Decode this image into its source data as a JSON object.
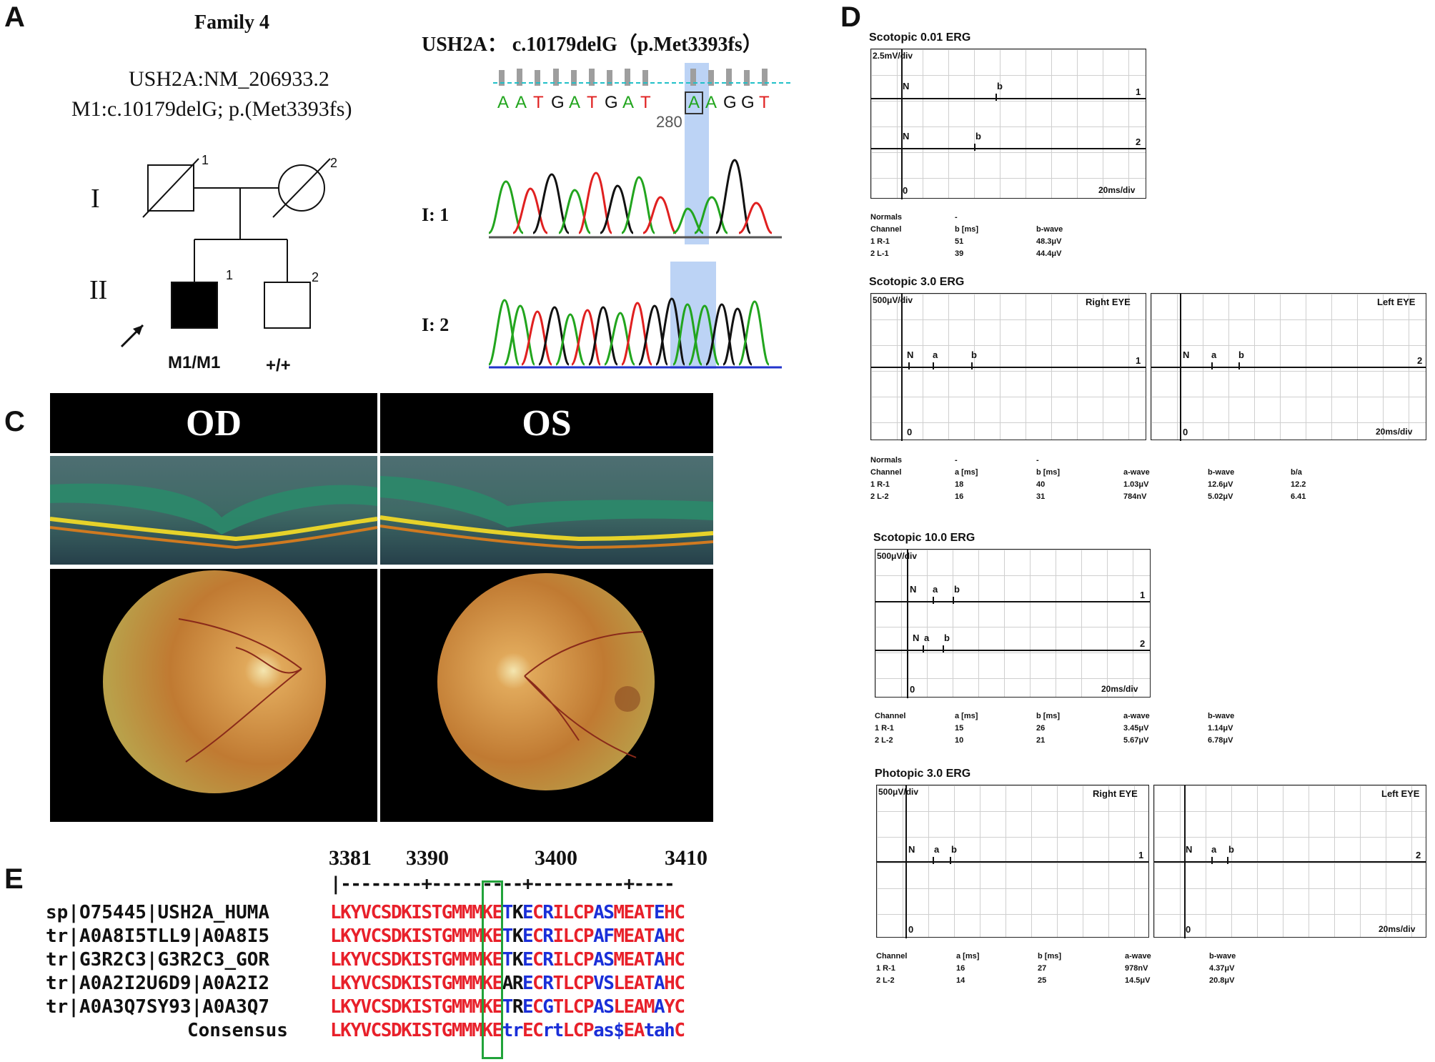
{
  "panels": {
    "a": "A",
    "c": "C",
    "d": "D",
    "e": "E"
  },
  "pedigree": {
    "family": "Family 4",
    "gene_ref": "USH2A:NM_206933.2",
    "mutation": "M1:c.10179delG; p.(Met3393fs)",
    "gen1": "I",
    "gen2": "II",
    "ids": [
      "1",
      "2",
      "1",
      "2"
    ],
    "genotypes": [
      "M1/M1",
      "+/+"
    ]
  },
  "chromatogram": {
    "title": "USH2A： c.10179delG（p.Met3393fs）",
    "bases": [
      "A",
      "A",
      "T",
      "G",
      "A",
      "T",
      "G",
      "A",
      "T",
      "A",
      "A",
      "G",
      "G",
      "T"
    ],
    "position": "280",
    "traces": [
      "I: 1",
      "I: 2"
    ]
  },
  "imaging": {
    "od": "OD",
    "os": "OS"
  },
  "erg": [
    {
      "title": "Scotopic 0.01 ERG",
      "scale": "2.5mV/div",
      "time": "20ms/div",
      "zero": "0",
      "channels": [
        "1",
        "2"
      ],
      "markers": [
        "N",
        "b",
        "N",
        "b"
      ],
      "table": {
        "header_top": [
          "Normals",
          "-"
        ],
        "header": [
          "Channel",
          "b [ms]",
          "b-wave"
        ],
        "rows": [
          [
            "1 R-1",
            "51",
            "48.3μV"
          ],
          [
            "2 L-1",
            "39",
            "44.4μV"
          ]
        ]
      }
    },
    {
      "title": "Scotopic 3.0 ERG",
      "scale": "500μV/div",
      "right": "Right EYE",
      "left": "Left EYE",
      "time": "20ms/div",
      "zero": "0",
      "channels": [
        "1",
        "2"
      ],
      "markers": [
        "N",
        "a",
        "b"
      ],
      "table": {
        "header_top": [
          "Normals",
          "-",
          "-"
        ],
        "header": [
          "Channel",
          "a [ms]",
          "b [ms]",
          "a-wave",
          "b-wave",
          "b/a"
        ],
        "rows": [
          [
            "1 R-1",
            "18",
            "40",
            "1.03μV",
            "12.6μV",
            "12.2"
          ],
          [
            "2 L-2",
            "16",
            "31",
            "784nV",
            "5.02μV",
            "6.41"
          ]
        ]
      }
    },
    {
      "title": "Scotopic 10.0 ERG",
      "scale": "500μV/div",
      "time": "20ms/div",
      "zero": "0",
      "channels": [
        "1",
        "2"
      ],
      "markers": [
        "N",
        "a",
        "b"
      ],
      "table": {
        "header": [
          "Channel",
          "a [ms]",
          "b [ms]",
          "a-wave",
          "b-wave"
        ],
        "rows": [
          [
            "1 R-1",
            "15",
            "26",
            "3.45μV",
            "1.14μV"
          ],
          [
            "2 L-2",
            "10",
            "21",
            "5.67μV",
            "6.78μV"
          ]
        ]
      }
    },
    {
      "title": "Photopic 3.0 ERG",
      "scale": "500μV/div",
      "right": "Right EYE",
      "left": "Left EYE",
      "time": "20ms/div",
      "zero": "0",
      "channels": [
        "1",
        "2"
      ],
      "markers": [
        "N",
        "a",
        "b"
      ],
      "table": {
        "header": [
          "Channel",
          "a [ms]",
          "b [ms]",
          "a-wave",
          "b-wave"
        ],
        "rows": [
          [
            "1 R-1",
            "16",
            "27",
            "978nV",
            "4.37μV"
          ],
          [
            "2 L-2",
            "14",
            "25",
            "14.5μV",
            "20.8μV"
          ]
        ]
      }
    }
  ],
  "alignment": {
    "positions": [
      "3381",
      "3390",
      "3400",
      "3410"
    ],
    "ruler": "|--------+---------+---------+----",
    "names": [
      "sp|O75445|USH2A_HUMA",
      "tr|A0A8I5TLL9|A0A8I5",
      "tr|G3R2C3|G3R2C3_GOR",
      "tr|A0A2I2U6D9|A0A2I2",
      "tr|A0A3Q7SY93|A0A3Q7",
      "Consensus"
    ],
    "seqs": [
      "LKYVCSDKISTGMMMKETKECRILCPASMEATEHC",
      "LKYVCSDKISTGMMMKETKECRILCPAFMEATAHC",
      "LKYVCSDKISTGMMMKETKECRILCPASMEATAHC",
      "LKYVCSDKISTGMMMKEARECRTLCPVSLEATAHC",
      "LKYVCSDKISTGMMMKETRECGTLCPASLEAMAYC",
      "LKYVCSDKISTGMMMKEtrECrtLCPas$EAtahC"
    ],
    "colors": [
      "rrrrrrrrrrrrrrrrrbkbrbrrrrbbrrrrbrr",
      "rrrrrrrrrrrrrrrrrbkbrbrrrrbbrrrrbrr",
      "rrrrrrrrrrrrrrrrrbkbrbrrrrbbrrrrbrr",
      "rrrrrrrrrrrrrrrrrkkbrbrrrrbbrrrrbrr",
      "rrrrrrrrrrrrrrrrrbkbrbrrrrbbrrrrbrr",
      "rrrrrrrrrrrrrrrrrbbrrbbrrrbbbrrbbbr"
    ]
  }
}
